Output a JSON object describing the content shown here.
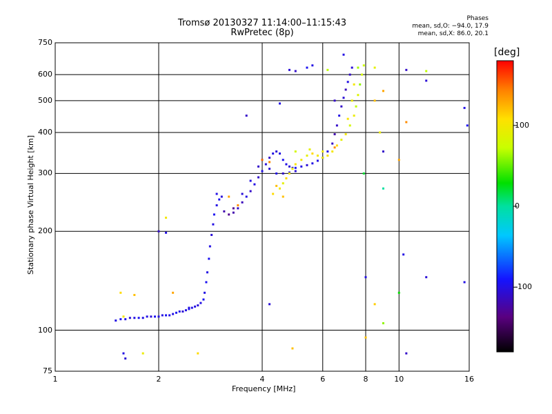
{
  "chart_data": {
    "type": "scatter",
    "title": "Tromsø 20130327 11:14:00–11:15:43",
    "subtitle": "RwPretec (8p)",
    "xlabel": "Frequency [MHz]",
    "ylabel": "Stationary phase Virtual Height [km]",
    "xscale": "log",
    "yscale": "log",
    "xlim": [
      1,
      16
    ],
    "ylim": [
      75,
      750
    ],
    "xticks": [
      1,
      2,
      4,
      6,
      8,
      10,
      16
    ],
    "xtick_labels": [
      "1",
      "2",
      "4",
      "6",
      "8",
      "10",
      "16"
    ],
    "yticks": [
      75,
      100,
      200,
      300,
      400,
      500,
      600,
      750
    ],
    "ytick_labels": [
      "75",
      "100",
      "200",
      "300",
      "400",
      "500",
      "600",
      "750"
    ],
    "grid": true,
    "stats": {
      "heading": "Phases",
      "line_o": "mean, sd,O: −94.0, 17.9",
      "line_x": "mean, sd,X:  86.0, 20.1"
    },
    "colorbar": {
      "label": "[deg]",
      "range": [
        -180,
        180
      ],
      "ticks": [
        100,
        0,
        -100
      ],
      "tick_labels": [
        "100",
        "0",
        "-100"
      ]
    },
    "series": [
      {
        "points": [
          [
            1.5,
            107,
            -100
          ],
          [
            1.55,
            108,
            -95
          ],
          [
            1.6,
            108,
            -100
          ],
          [
            1.65,
            109,
            -105
          ],
          [
            1.7,
            109,
            -100
          ],
          [
            1.75,
            109,
            -95
          ],
          [
            1.8,
            109,
            -100
          ],
          [
            1.85,
            110,
            -100
          ],
          [
            1.9,
            110,
            -105
          ],
          [
            1.95,
            110,
            -95
          ],
          [
            2.0,
            110,
            -100
          ],
          [
            2.05,
            111,
            -100
          ],
          [
            2.1,
            111,
            -95
          ],
          [
            2.15,
            111,
            -100
          ],
          [
            2.2,
            112,
            -100
          ],
          [
            2.25,
            113,
            -95
          ],
          [
            2.3,
            114,
            -100
          ],
          [
            2.35,
            114,
            -105
          ],
          [
            2.4,
            115,
            -100
          ],
          [
            2.45,
            116,
            -95
          ],
          [
            2.5,
            117,
            -100
          ],
          [
            2.55,
            118,
            -100
          ],
          [
            2.6,
            119,
            -105
          ],
          [
            2.65,
            121,
            -100
          ],
          [
            2.7,
            124,
            -95
          ],
          [
            2.72,
            130,
            -100
          ],
          [
            2.75,
            140,
            -95
          ],
          [
            2.77,
            150,
            -100
          ],
          [
            2.8,
            165,
            -95
          ],
          [
            2.82,
            180,
            -100
          ],
          [
            2.85,
            195,
            -105
          ],
          [
            2.88,
            210,
            -100
          ],
          [
            2.9,
            225,
            -95
          ],
          [
            2.95,
            240,
            -100
          ],
          [
            3.0,
            250,
            -95
          ],
          [
            3.05,
            255,
            -105
          ],
          [
            2.95,
            260,
            -100
          ],
          [
            3.1,
            230,
            -120
          ],
          [
            3.2,
            225,
            -130
          ],
          [
            3.3,
            228,
            -120
          ],
          [
            3.4,
            235,
            -110
          ],
          [
            3.5,
            245,
            -115
          ],
          [
            3.6,
            255,
            -100
          ],
          [
            3.7,
            265,
            -110
          ],
          [
            3.8,
            278,
            -100
          ],
          [
            3.9,
            292,
            -110
          ],
          [
            4.0,
            305,
            -100
          ],
          [
            4.1,
            320,
            -105
          ],
          [
            4.2,
            335,
            -110
          ],
          [
            4.3,
            345,
            -100
          ],
          [
            4.4,
            350,
            -105
          ],
          [
            4.5,
            345,
            -100
          ],
          [
            4.6,
            330,
            -95
          ],
          [
            4.7,
            320,
            -100
          ],
          [
            4.8,
            315,
            -105
          ],
          [
            4.9,
            312,
            -100
          ],
          [
            5.0,
            312,
            -95
          ],
          [
            5.2,
            315,
            -100
          ],
          [
            5.4,
            318,
            -105
          ],
          [
            5.6,
            322,
            -100
          ],
          [
            5.8,
            328,
            -100
          ],
          [
            6.0,
            335,
            -105
          ],
          [
            6.2,
            350,
            -100
          ],
          [
            6.4,
            370,
            -110
          ],
          [
            6.5,
            395,
            -120
          ],
          [
            6.6,
            420,
            -110
          ],
          [
            6.7,
            450,
            -100
          ],
          [
            6.8,
            480,
            -110
          ],
          [
            6.9,
            510,
            -105
          ],
          [
            7.0,
            540,
            -115
          ],
          [
            7.1,
            570,
            -100
          ],
          [
            7.2,
            600,
            -110
          ],
          [
            7.3,
            630,
            -105
          ],
          [
            4.0,
            330,
            -100
          ],
          [
            4.2,
            310,
            -105
          ],
          [
            4.4,
            300,
            -100
          ],
          [
            4.6,
            300,
            -110
          ],
          [
            4.8,
            302,
            -100
          ],
          [
            5.0,
            305,
            -105
          ],
          [
            3.3,
            235,
            -130
          ],
          [
            3.5,
            260,
            -105
          ],
          [
            3.7,
            285,
            -100
          ],
          [
            3.9,
            315,
            -110
          ],
          [
            5.6,
            640,
            -100
          ],
          [
            5.4,
            630,
            -95
          ],
          [
            5.0,
            615,
            -110
          ],
          [
            4.8,
            620,
            -105
          ],
          [
            6.9,
            690,
            -100
          ],
          [
            6.5,
            500,
            -110
          ],
          [
            4.5,
            490,
            -100
          ],
          [
            3.6,
            450,
            -110
          ],
          [
            10.5,
            620,
            -110
          ],
          [
            12.0,
            575,
            -105
          ],
          [
            15.5,
            475,
            -100
          ],
          [
            15.8,
            420,
            -95
          ],
          [
            10.5,
            85,
            -110
          ],
          [
            10.3,
            170,
            -100
          ],
          [
            12.0,
            145,
            -105
          ],
          [
            15.5,
            140,
            -100
          ],
          [
            1.58,
            85,
            -100
          ],
          [
            1.6,
            82,
            -105
          ],
          [
            2.45,
            117,
            -100
          ],
          [
            2.0,
            200,
            -110
          ],
          [
            2.1,
            198,
            -100
          ],
          [
            4.2,
            120,
            -105
          ],
          [
            8.0,
            145,
            -100
          ],
          [
            9.0,
            350,
            -110
          ]
        ]
      },
      {
        "points": [
          [
            4.4,
            275,
            120
          ],
          [
            4.5,
            270,
            100
          ],
          [
            4.6,
            280,
            90
          ],
          [
            4.7,
            290,
            110
          ],
          [
            4.8,
            300,
            100
          ],
          [
            4.9,
            310,
            95
          ],
          [
            5.0,
            320,
            105
          ],
          [
            5.2,
            330,
            100
          ],
          [
            5.4,
            340,
            90
          ],
          [
            5.6,
            345,
            110
          ],
          [
            5.8,
            340,
            100
          ],
          [
            6.0,
            335,
            95
          ],
          [
            6.2,
            340,
            105
          ],
          [
            6.4,
            350,
            100
          ],
          [
            6.6,
            365,
            110
          ],
          [
            6.8,
            380,
            90
          ],
          [
            7.0,
            395,
            100
          ],
          [
            7.2,
            420,
            80
          ],
          [
            7.4,
            450,
            95
          ],
          [
            7.5,
            480,
            70
          ],
          [
            7.6,
            520,
            85
          ],
          [
            7.7,
            560,
            60
          ],
          [
            7.8,
            600,
            80
          ],
          [
            7.9,
            640,
            75
          ],
          [
            7.6,
            630,
            65
          ],
          [
            7.4,
            560,
            100
          ],
          [
            7.3,
            500,
            95
          ],
          [
            7.1,
            440,
            105
          ],
          [
            4.3,
            260,
            110
          ],
          [
            4.6,
            255,
            120
          ],
          [
            5.0,
            350,
            80
          ],
          [
            5.5,
            355,
            90
          ],
          [
            6.0,
            350,
            100
          ],
          [
            6.5,
            360,
            140
          ],
          [
            1.55,
            130,
            110
          ],
          [
            1.7,
            128,
            120
          ],
          [
            1.58,
            110,
            100
          ],
          [
            2.2,
            130,
            130
          ],
          [
            2.6,
            85,
            110
          ],
          [
            1.8,
            85,
            95
          ],
          [
            4.0,
            330,
            150
          ],
          [
            4.2,
            325,
            140
          ],
          [
            3.2,
            255,
            130
          ],
          [
            3.4,
            240,
            140
          ],
          [
            8.0,
            95,
            120
          ],
          [
            8.5,
            120,
            115
          ],
          [
            9.0,
            535,
            130
          ],
          [
            10.0,
            330,
            130
          ],
          [
            10.5,
            430,
            140
          ],
          [
            8.5,
            500,
            120
          ],
          [
            8.8,
            400,
            95
          ],
          [
            9.0,
            105,
            60
          ],
          [
            8.5,
            630,
            90
          ],
          [
            2.1,
            220,
            100
          ],
          [
            4.9,
            88,
            120
          ],
          [
            6.2,
            620,
            70
          ],
          [
            7.9,
            300,
            20
          ],
          [
            9.0,
            270,
            0
          ],
          [
            10.0,
            130,
            30
          ],
          [
            12.0,
            615,
            70
          ]
        ]
      }
    ]
  }
}
